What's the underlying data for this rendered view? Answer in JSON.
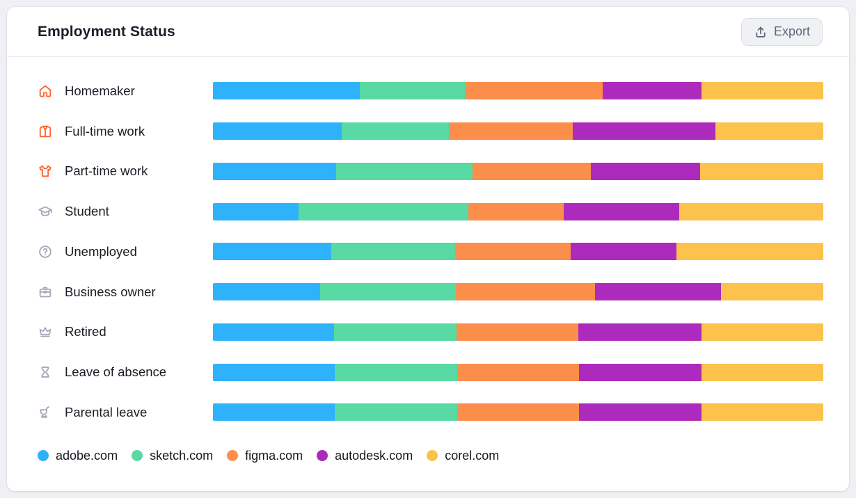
{
  "header": {
    "title": "Employment Status",
    "export_label": "Export"
  },
  "colors": {
    "page_bg": "#EEF0F4",
    "card_bg": "#FFFFFF",
    "icon_orange": "#FF642D",
    "icon_gray": "#A3A9B8",
    "title_text": "#1B1D28",
    "label_text": "#1B1C25",
    "export_text": "#5F6678"
  },
  "chart_data": {
    "type": "bar",
    "variant": "horizontal-stacked-percent",
    "title": "Employment Status",
    "unit": "%",
    "xlim": [
      0,
      100
    ],
    "grid": false,
    "legend_position": "bottom",
    "categories": [
      "Homemaker",
      "Full-time work",
      "Part-time work",
      "Student",
      "Unemployed",
      "Business owner",
      "Retired",
      "Leave of absence",
      "Parental leave"
    ],
    "category_icons": [
      "home-icon",
      "jacket-icon",
      "tshirt-icon",
      "graduation-cap-icon",
      "question-circle-icon",
      "briefcase-icon",
      "crown-icon",
      "hourglass-icon",
      "stroller-icon"
    ],
    "category_icon_colors": [
      "#FF642D",
      "#FF642D",
      "#FF642D",
      "#A3A9B8",
      "#A3A9B8",
      "#A3A9B8",
      "#A3A9B8",
      "#A3A9B8",
      "#A3A9B8"
    ],
    "series": [
      {
        "name": "adobe.com",
        "color": "#2FB2FC",
        "values": [
          24.1,
          21.1,
          20.2,
          14.0,
          19.4,
          17.6,
          19.8,
          19.9,
          19.9
        ]
      },
      {
        "name": "sketch.com",
        "color": "#59D9A3",
        "values": [
          17.2,
          17.6,
          22.3,
          27.8,
          20.3,
          22.2,
          20.1,
          20.1,
          20.1
        ]
      },
      {
        "name": "figma.com",
        "color": "#FC8E4B",
        "values": [
          22.6,
          20.2,
          19.4,
          15.7,
          18.9,
          22.8,
          20.0,
          20.0,
          20.0
        ]
      },
      {
        "name": "autodesk.com",
        "color": "#AD2BBC",
        "values": [
          16.2,
          23.4,
          17.9,
          18.9,
          17.3,
          20.6,
          20.2,
          20.1,
          20.1
        ]
      },
      {
        "name": "corel.com",
        "color": "#FBC34C",
        "values": [
          19.9,
          17.7,
          20.2,
          23.6,
          24.1,
          16.8,
          19.9,
          19.9,
          19.9
        ]
      }
    ]
  }
}
